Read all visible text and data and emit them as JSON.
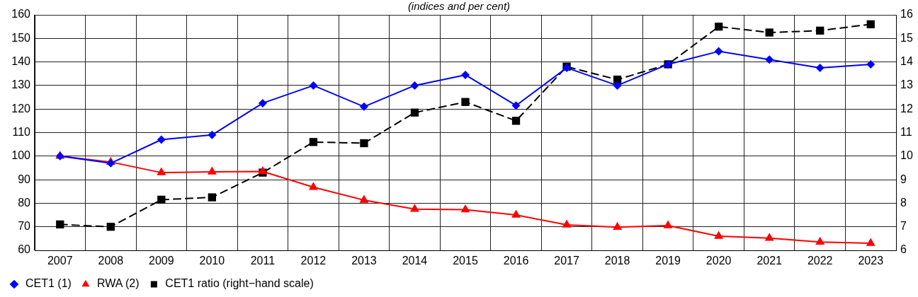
{
  "chart_data": {
    "type": "line",
    "title": "(indices and per cent)",
    "categories": [
      "2007",
      "2008",
      "2009",
      "2010",
      "2011",
      "2012",
      "2013",
      "2014",
      "2015",
      "2016",
      "2017",
      "2018",
      "2019",
      "2020",
      "2021",
      "2022",
      "2023"
    ],
    "series": [
      {
        "name": "CET1 (1)",
        "color": "#0000ff",
        "marker": "diamond",
        "line_style": "solid",
        "values": [
          100,
          97,
          107,
          109,
          122.5,
          130,
          121,
          130,
          134.5,
          121.5,
          137.5,
          130,
          139,
          144.5,
          141,
          137.5,
          139
        ]
      },
      {
        "name": "RWA (2)",
        "color": "#ff0000",
        "marker": "triangle",
        "line_style": "solid",
        "values": [
          100,
          97.5,
          93,
          93.3,
          93.5,
          86.8,
          81.3,
          77.5,
          77.3,
          75,
          70.8,
          69.8,
          70.5,
          66,
          65.2,
          63.5,
          63
        ]
      },
      {
        "name": "CET1 ratio (right−hand scale)",
        "color": "#000000",
        "marker": "square",
        "line_style": "dashed",
        "axis": "y2",
        "values": [
          7.1,
          7.0,
          8.15,
          8.25,
          9.3,
          10.6,
          10.55,
          11.85,
          12.3,
          11.5,
          13.8,
          13.25,
          13.9,
          15.5,
          15.25,
          15.33,
          15.6
        ]
      }
    ],
    "ylim": [
      60,
      160
    ],
    "yticks": [
      60,
      70,
      80,
      90,
      100,
      110,
      120,
      130,
      140,
      150,
      160
    ],
    "y2lim": [
      6,
      16
    ],
    "y2ticks": [
      6,
      7,
      8,
      9,
      10,
      11,
      12,
      13,
      14,
      15,
      16
    ],
    "grid": true,
    "legend": "bottom left"
  }
}
